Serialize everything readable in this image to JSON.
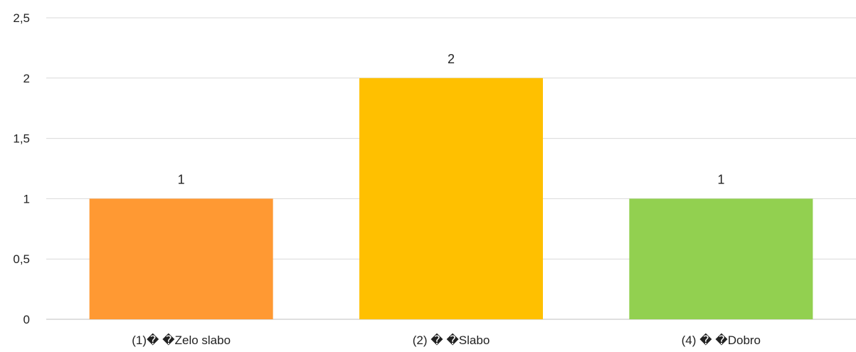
{
  "chart_data": {
    "type": "bar",
    "title": "",
    "xlabel": "",
    "ylabel": "",
    "categories": [
      "(1)� �Zelo slabo",
      "(2) � �Slabo",
      "(4) � �Dobro"
    ],
    "values": [
      1,
      2,
      1
    ],
    "data_labels": [
      "1",
      "2",
      "1"
    ],
    "colors": [
      "#FF9933",
      "#FFC000",
      "#92D050"
    ],
    "ylim": [
      0,
      2.5
    ],
    "yticks": [
      0,
      0.5,
      1,
      1.5,
      2,
      2.5
    ],
    "ytick_labels": [
      "0",
      "0,5",
      "1",
      "1,5",
      "2",
      "2,5"
    ],
    "grid": true,
    "legend": "none"
  }
}
